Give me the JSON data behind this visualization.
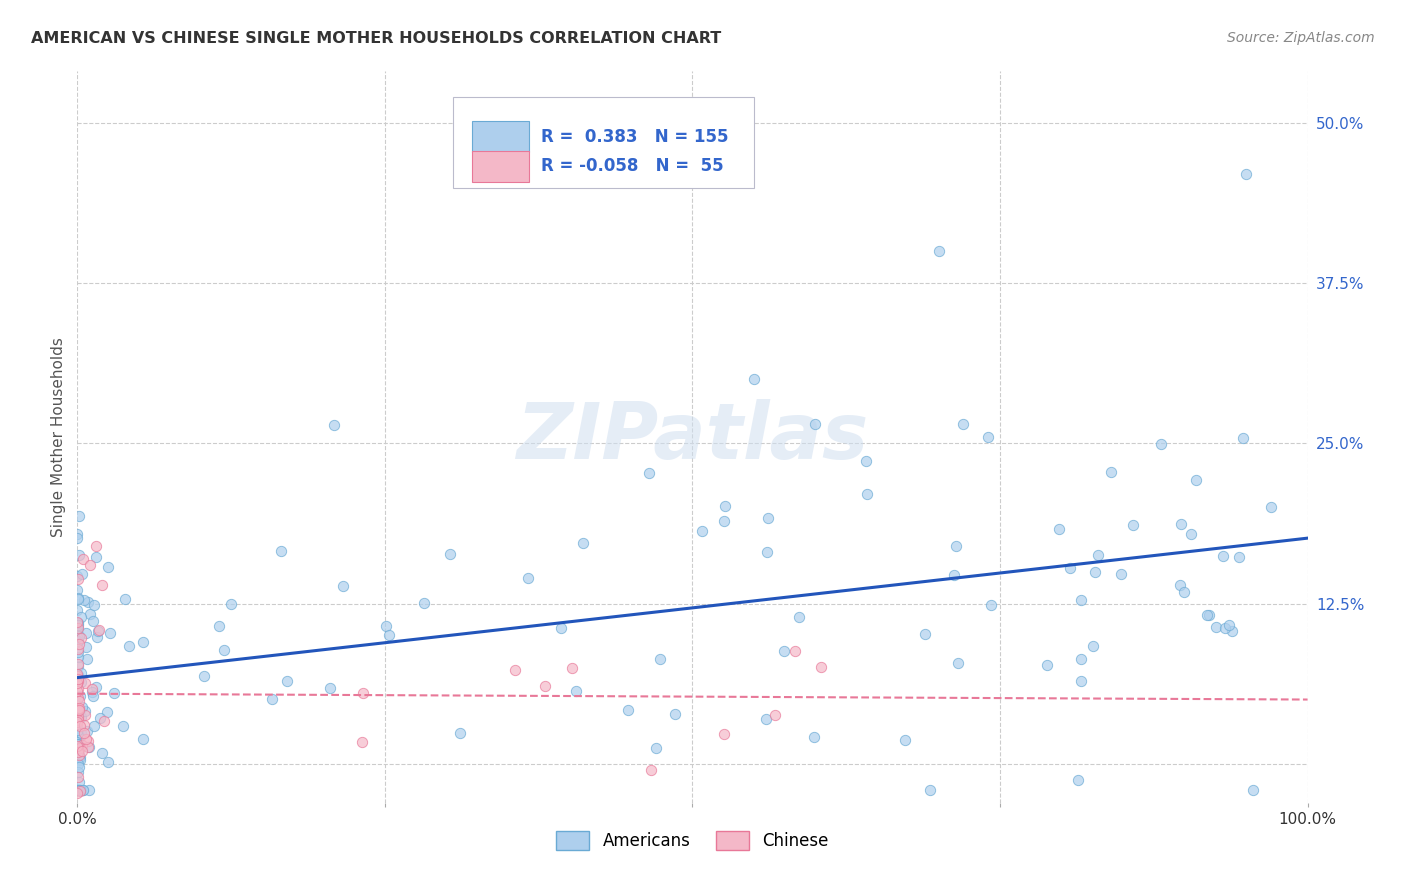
{
  "title": "AMERICAN VS CHINESE SINGLE MOTHER HOUSEHOLDS CORRELATION CHART",
  "source": "Source: ZipAtlas.com",
  "ylabel": "Single Mother Households",
  "xlim": [
    0,
    1.0
  ],
  "ylim": [
    -0.03,
    0.54
  ],
  "xticks": [
    0.0,
    0.25,
    0.5,
    0.75,
    1.0
  ],
  "xtick_labels": [
    "0.0%",
    "",
    "",
    "",
    "100.0%"
  ],
  "yticks": [
    0.0,
    0.125,
    0.25,
    0.375,
    0.5
  ],
  "ytick_labels": [
    "",
    "12.5%",
    "25.0%",
    "37.5%",
    "50.0%"
  ],
  "background_color": "#ffffff",
  "grid_color": "#cccccc",
  "american_color": "#aecfed",
  "chinese_color": "#f4b8c8",
  "american_edge_color": "#6aaad4",
  "chinese_edge_color": "#e87898",
  "trend_american_color": "#2255bb",
  "trend_chinese_color": "#e87898",
  "watermark_text": "ZIPatlas",
  "legend_text_color": "#3366cc",
  "ytick_color": "#3366cc",
  "xtick_color": "#333333",
  "title_color": "#333333",
  "source_color": "#888888",
  "seed_am": 12,
  "seed_ch": 77,
  "n_am": 155,
  "n_ch": 55
}
